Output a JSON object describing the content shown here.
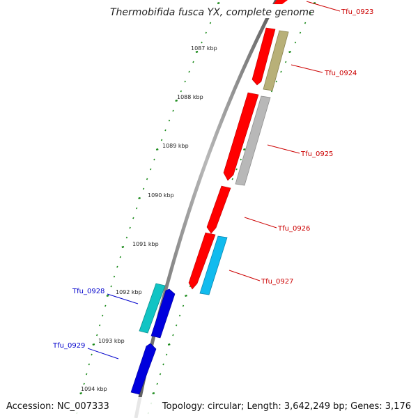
{
  "title": "Thermobifida fusca YX, complete genome",
  "footer": {
    "accession": "Accession: NC_007333",
    "summary": "Topology: circular; Length: 3,642,249 bp; Genes: 3,176"
  },
  "colors": {
    "backbone": "#808080",
    "tick": "#1a8a1a",
    "forward_label": "#cc0000",
    "reverse_label": "#0000cc"
  },
  "kbp_marks": [
    "1087 kbp",
    "1088 kbp",
    "1089 kbp",
    "1090 kbp",
    "1091 kbp",
    "1092 kbp",
    "1093 kbp",
    "1094 kbp"
  ],
  "genes": [
    {
      "id": "Tfu_0923",
      "strand": "forward",
      "color": "#ff0000"
    },
    {
      "id": "Tfu_0924",
      "strand": "forward",
      "color": "#ff0000"
    },
    {
      "id": "Tfu_0925",
      "strand": "forward",
      "color": "#ff0000"
    },
    {
      "id": "Tfu_0926",
      "strand": "forward",
      "color": "#ff0000"
    },
    {
      "id": "Tfu_0927",
      "strand": "forward",
      "color": "#ff0000"
    },
    {
      "id": "Tfu_0928",
      "strand": "reverse",
      "color": "#0000dd"
    },
    {
      "id": "Tfu_0929",
      "strand": "reverse",
      "color": "#0000dd"
    }
  ],
  "features": [
    {
      "id": "Tfu_0924-feature",
      "color": "#b8b078"
    },
    {
      "id": "Tfu_0925-feature",
      "color": "#b8b8b8"
    },
    {
      "id": "Tfu_0927-feature",
      "color": "#11bbee"
    },
    {
      "id": "Tfu_0928-feature",
      "color": "#11c4c4"
    }
  ]
}
